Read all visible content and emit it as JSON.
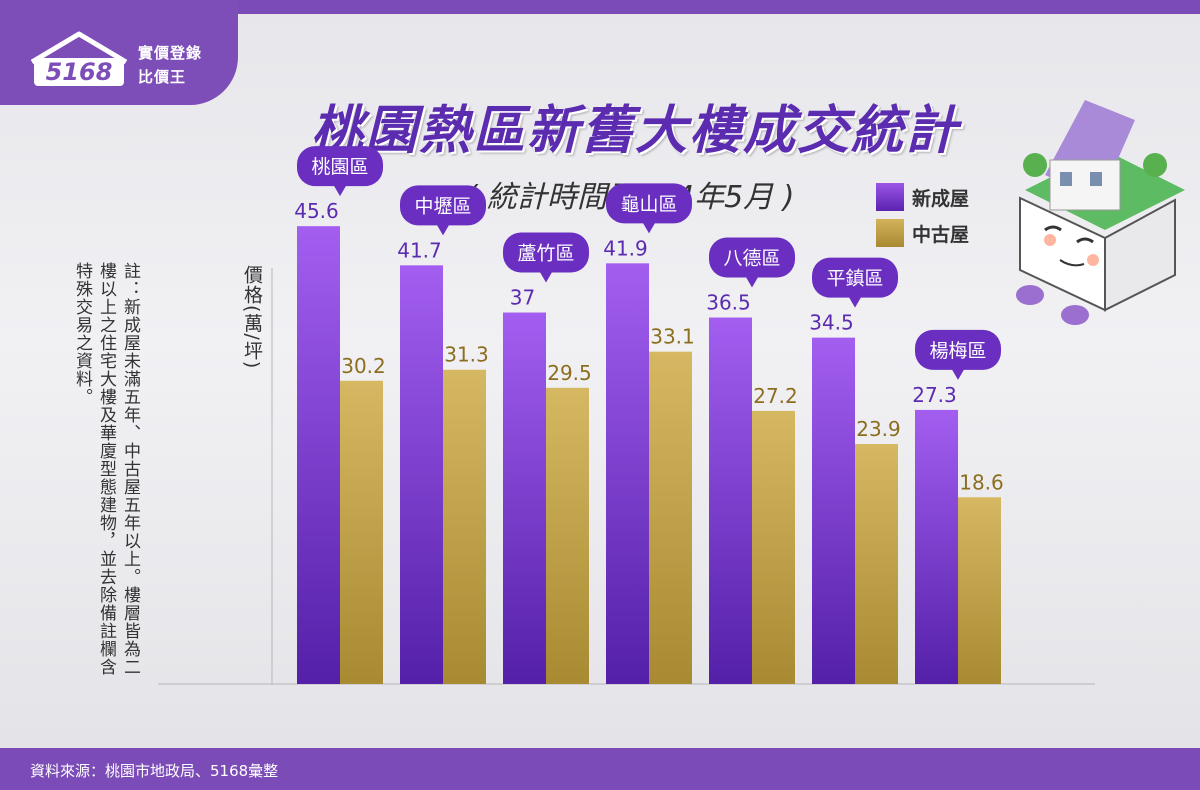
{
  "brand": {
    "logo_number": "5168",
    "logo_line1": "實價登錄",
    "logo_line2": "比價王"
  },
  "title": "桃園熱區新舊大樓成交統計",
  "subtitle": "( 統計時間至114年5月 )",
  "note": "註：新成屋未滿五年、中古屋五年以上。樓層皆為二樓以上之住宅大樓及華廈型態建物，並去除備註欄含特殊交易之資料。",
  "footer": {
    "source": "資料來源：桃園市地政局、5168彙整"
  },
  "colors": {
    "new": "#8a45d9",
    "old": "#bf9d42",
    "label_new": "#5b2bb0",
    "label_old": "#8c6e1f",
    "tag": "#6a2fc0"
  },
  "chart_data": {
    "type": "bar",
    "title": "桃園熱區新舊大樓成交統計",
    "subtitle": "( 統計時間至114年5月 )",
    "ylabel": "價格(萬/坪)",
    "xlabel": "",
    "ylim": [
      0,
      50
    ],
    "grid": false,
    "legend": "top-right",
    "categories": [
      "桃園區",
      "中壢區",
      "蘆竹區",
      "龜山區",
      "八德區",
      "平鎮區",
      "楊梅區"
    ],
    "series": [
      {
        "name": "新成屋",
        "values": [
          45.6,
          41.7,
          37,
          41.9,
          36.5,
          34.5,
          27.3
        ]
      },
      {
        "name": "中古屋",
        "values": [
          30.2,
          31.3,
          29.5,
          33.1,
          27.2,
          23.9,
          18.6
        ]
      }
    ]
  }
}
